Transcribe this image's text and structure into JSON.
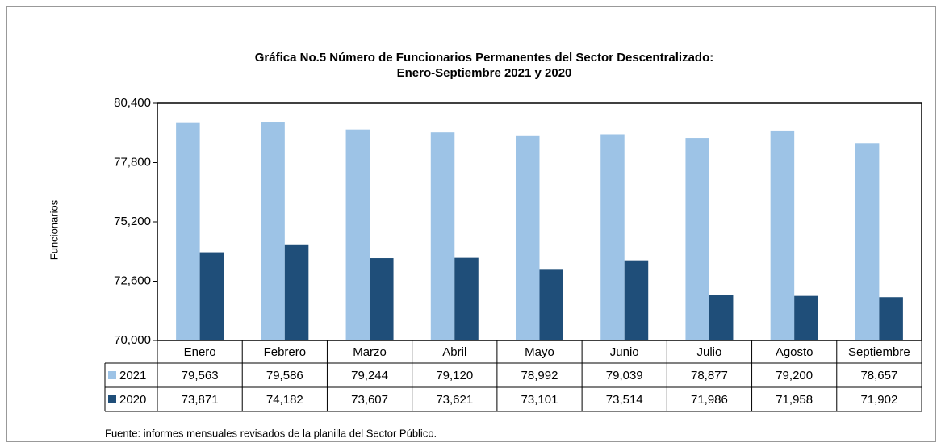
{
  "chart_data": {
    "type": "bar",
    "title": "Gráfica No.5 Número de Funcionarios Permanentes del Sector Descentralizado:",
    "subtitle": "Enero-Septiembre 2021 y 2020",
    "y_label": "Funcionarios",
    "categories": [
      "Enero",
      "Febrero",
      "Marzo",
      "Abril",
      "Mayo",
      "Junio",
      "Julio",
      "Agosto",
      "Septiembre"
    ],
    "series": [
      {
        "name": "2021",
        "color": "#9dc3e6",
        "values": [
          79563,
          79586,
          79244,
          79120,
          78992,
          79039,
          78877,
          79200,
          78657
        ],
        "value_labels": [
          "79,563",
          "79,586",
          "79,244",
          "79,120",
          "78,992",
          "79,039",
          "78,877",
          "79,200",
          "78,657"
        ]
      },
      {
        "name": "2020",
        "color": "#1f4e79",
        "values": [
          73871,
          74182,
          73607,
          73621,
          73101,
          73514,
          71986,
          71958,
          71902
        ],
        "value_labels": [
          "73,871",
          "74,182",
          "73,607",
          "73,621",
          "73,101",
          "73,514",
          "71,986",
          "71,958",
          "71,902"
        ]
      }
    ],
    "ylim": [
      70000,
      80400
    ],
    "yticks": [
      {
        "value": 70000,
        "label": "70,000"
      },
      {
        "value": 72600,
        "label": "72,600"
      },
      {
        "value": 75200,
        "label": "75,200"
      },
      {
        "value": 77800,
        "label": "77,800"
      },
      {
        "value": 80400,
        "label": "80,400"
      }
    ],
    "source": "Fuente: informes mensuales revisados de la planilla del Sector Público."
  }
}
